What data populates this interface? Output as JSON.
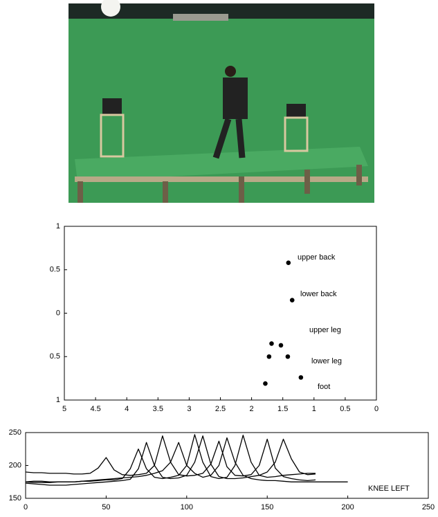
{
  "chart_data": [
    {
      "type": "scatter",
      "series": [
        {
          "color": "#000000",
          "x": [
            1.41,
            1.35,
            1.68,
            1.53,
            1.72,
            1.42,
            1.21,
            1.78
          ],
          "values": [
            0.58,
            0.15,
            -0.35,
            -0.37,
            -0.5,
            -0.5,
            -0.74,
            -0.81
          ]
        }
      ],
      "annotations": [
        "upper back",
        "lower back",
        "upper leg",
        "lower leg",
        "foot"
      ],
      "xlim": [
        5,
        0
      ],
      "xticks": [
        5,
        4.5,
        4,
        3.5,
        3,
        2.5,
        2,
        1.5,
        1,
        0.5,
        0
      ],
      "ylim": [
        -1,
        1
      ],
      "yticks": [
        {
          "value": -1,
          "label": "1"
        },
        {
          "value": -0.5,
          "label": "0.5"
        },
        0,
        0.5,
        1
      ]
    },
    {
      "type": "line",
      "x": [
        0,
        5,
        10,
        15,
        20,
        25,
        30,
        35,
        40,
        45,
        50,
        55,
        60,
        65,
        70,
        75,
        80,
        85,
        90,
        95,
        100,
        105,
        110,
        115,
        120,
        125,
        130,
        135,
        140,
        145,
        150,
        155,
        160,
        165,
        170,
        175,
        180,
        185,
        190,
        195,
        200
      ],
      "series": [
        {
          "color": "#000000",
          "values": [
            190,
            189,
            189,
            188,
            188,
            188,
            187,
            187,
            188,
            196,
            212,
            193,
            186,
            185,
            186,
            188,
            200,
            245,
            205,
            186,
            184,
            185,
            188,
            202,
            237,
            198,
            185,
            184,
            186,
            200,
            240,
            196,
            183,
            180,
            178,
            177,
            178,
            null,
            null,
            null,
            null
          ]
        },
        {
          "color": "#000000",
          "values": [
            175,
            176,
            176,
            175,
            175,
            175,
            175,
            176,
            176,
            177,
            178,
            178,
            180,
            195,
            225,
            195,
            182,
            180,
            182,
            185,
            200,
            247,
            205,
            183,
            180,
            182,
            200,
            246,
            205,
            185,
            182,
            183,
            185,
            186,
            187,
            188,
            188,
            null,
            null,
            null,
            null
          ]
        },
        {
          "color": "#000000",
          "values": [
            173,
            172,
            171,
            170,
            170,
            170,
            171,
            172,
            173,
            174,
            175,
            176,
            177,
            179,
            195,
            235,
            200,
            182,
            180,
            181,
            185,
            205,
            245,
            202,
            183,
            180,
            180,
            181,
            183,
            185,
            190,
            205,
            240,
            210,
            190,
            186,
            187,
            null,
            null,
            null,
            null
          ]
        },
        {
          "color": "#000000",
          "values": [
            175,
            174,
            174,
            174,
            175,
            175,
            175,
            176,
            177,
            178,
            179,
            180,
            181,
            182,
            183,
            185,
            188,
            192,
            205,
            235,
            200,
            188,
            182,
            185,
            200,
            242,
            205,
            185,
            180,
            178,
            177,
            177,
            176,
            175,
            175,
            175,
            175,
            175,
            175,
            175,
            175
          ]
        }
      ],
      "annotations": [
        "KNEE LEFT"
      ],
      "xlim": [
        0,
        250
      ],
      "xticks": [
        0,
        50,
        100,
        150,
        200,
        250
      ],
      "ylim": [
        150,
        250
      ],
      "yticks": [
        150,
        200,
        250
      ]
    }
  ]
}
